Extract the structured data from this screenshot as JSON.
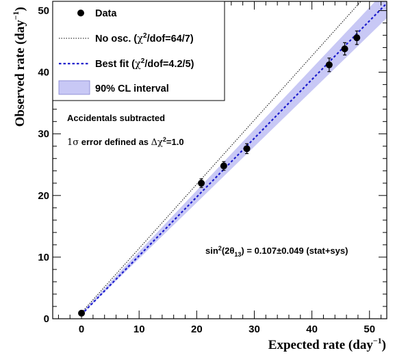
{
  "chart_data": {
    "type": "scatter",
    "xlabel": "Expected rate (day",
    "xlabel_sup": "−1",
    "xlabel_end": ")",
    "ylabel": "Observed rate (day",
    "ylabel_sup": "−1",
    "ylabel_end": ")",
    "xlim": [
      -5,
      53
    ],
    "ylim": [
      0,
      51.5
    ],
    "xticks": [
      0,
      10,
      20,
      30,
      40,
      50
    ],
    "yticks": [
      0,
      10,
      20,
      30,
      40,
      50
    ],
    "grid": false,
    "legend_position": "top-left",
    "legend": {
      "data": "Data",
      "noosc_prefix": "No osc. (",
      "noosc_chi": "χ",
      "noosc_sup": "2",
      "noosc_suffix": "/dof=64/7)",
      "bestfit_prefix": "Best fit (",
      "bestfit_chi": "χ",
      "bestfit_sup": "2",
      "bestfit_suffix": "/dof=4.2/5)",
      "band": "90% CL interval"
    },
    "annotations": {
      "line1": "Accidentals subtracted",
      "line2_sigma": "1σ",
      "line2_mid": " error defined as ",
      "line2_delta": "Δχ",
      "line2_sup": "2",
      "line2_end": "=1.0",
      "result_pre": "sin",
      "result_sup": "2",
      "result_mid": "(2θ",
      "result_sub": "13",
      "result_end": ") = 0.107±0.049 (stat+sys)"
    },
    "series": [
      {
        "name": "Data",
        "points": [
          {
            "x": 0.0,
            "y": 0.9,
            "err": 0.4
          },
          {
            "x": 20.8,
            "y": 22.0,
            "err": 0.7
          },
          {
            "x": 24.7,
            "y": 24.8,
            "err": 0.7
          },
          {
            "x": 28.7,
            "y": 27.6,
            "err": 0.8
          },
          {
            "x": 43.0,
            "y": 41.2,
            "err": 1.1
          },
          {
            "x": 45.7,
            "y": 43.8,
            "err": 1.0
          },
          {
            "x": 47.8,
            "y": 45.6,
            "err": 1.1
          }
        ]
      },
      {
        "name": "No osc.",
        "line": [
          [
            0,
            1.0
          ],
          [
            48.5,
            51.5
          ]
        ]
      },
      {
        "name": "Best fit",
        "line": [
          [
            0,
            0.7
          ],
          [
            53,
            51.2
          ]
        ]
      },
      {
        "name": "90% CL interval",
        "band_lower": [
          [
            0,
            0.7
          ],
          [
            53,
            48.8
          ]
        ],
        "band_upper": [
          [
            0,
            1.0
          ],
          [
            53,
            53.5
          ]
        ]
      }
    ],
    "colors": {
      "best_fit": "#1a1acc",
      "band_fill": "#c8c8f5",
      "no_osc": "#000000",
      "data": "#000000"
    }
  }
}
